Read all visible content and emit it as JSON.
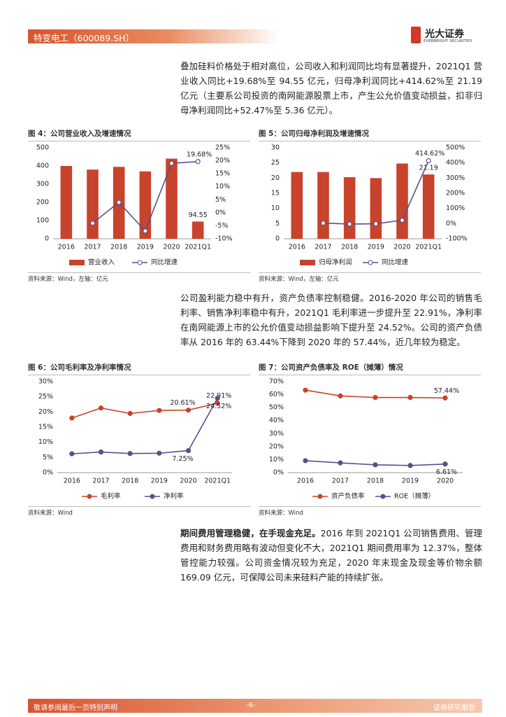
{
  "header": {
    "title": "特变电工（600089.SH）",
    "logo_cn": "光大证券",
    "logo_en": "EVERBRIGHT SECURITIES"
  },
  "paragraphs": [
    "叠加硅料价格处于相对高位，公司收入和利润同比均有显著提升，2021Q1 营业收入同比+19.68%至 94.55 亿元，归母净利润同比+414.62%至 21.19 亿元（主要系公司投资的南网能源股票上市，产生公允价值变动损益，扣非归母净利润同比+52.47%至 5.36 亿元）。",
    "公司盈利能力稳中有升，资产负债率控制稳健。2016-2020 年公司的销售毛利率、销售净利率稳中有升，2021Q1 毛利率进一步提升至 22.91%，净利率在南网能源上市的公允价值变动损益影响下提升至 24.52%。公司的资产负债率从 2016 年的 63.44%下降到 2020 年的 57.44%，近几年较为稳定。",
    {
      "lead": "期间费用管理稳健，在手现金充足。",
      "text": "2016 年到 2021Q1 公司销售费用、管理费用和财务费用略有波动但变化不大，2021Q1 期间费用率为 12.37%，整体管控能力较强。公司资金情况较为充足，2020 年末现金及现金等价物余额 169.09 亿元，可保障公司未来硅料产能的持续扩张。"
    }
  ],
  "chart_data": [
    {
      "type": "combo",
      "title": "图 4：公司营业收入及增速情况",
      "source": "资料来源：Wind，左轴：亿元",
      "categories": [
        "2016",
        "2017",
        "2018",
        "2019",
        "2020",
        "2021Q1"
      ],
      "series": [
        {
          "name": "营业收入",
          "type": "bar",
          "color": "#c8432b",
          "values": [
            400,
            380,
            395,
            370,
            440,
            94.55
          ],
          "value_labels": [
            null,
            null,
            null,
            null,
            null,
            "94.55"
          ]
        },
        {
          "name": "同比增速",
          "type": "line",
          "axis": "y2",
          "color": "#5b4e8a",
          "values": [
            null,
            -4,
            4,
            -7,
            19,
            19.68
          ],
          "value_labels": [
            null,
            null,
            null,
            null,
            null,
            "19.68%"
          ]
        }
      ],
      "ylim": [
        0,
        500
      ],
      "yticks": [
        0,
        100,
        200,
        300,
        400,
        500
      ],
      "y2lim": [
        -10,
        25
      ],
      "y2ticks": [
        {
          "value": -10,
          "label": "-10%"
        },
        {
          "value": -5,
          "label": "-5%"
        },
        {
          "value": 0,
          "label": "0%"
        },
        {
          "value": 5,
          "label": "5%"
        },
        {
          "value": 10,
          "label": "10%"
        },
        {
          "value": 15,
          "label": "15%"
        },
        {
          "value": 20,
          "label": "20%"
        },
        {
          "value": 25,
          "label": "25%"
        }
      ]
    },
    {
      "type": "combo",
      "title": "图 5：公司归母净利润及增速情况",
      "source": "资料来源：Wind，左轴：亿元",
      "categories": [
        "2016",
        "2017",
        "2018",
        "2019",
        "2020",
        "2021Q1"
      ],
      "series": [
        {
          "name": "归母净利润",
          "type": "bar",
          "color": "#c8432b",
          "values": [
            22,
            22,
            20.3,
            20,
            24.8,
            21.19
          ],
          "value_labels": [
            null,
            null,
            null,
            null,
            null,
            "21.19"
          ]
        },
        {
          "name": "同比增速",
          "type": "line",
          "axis": "y2",
          "color": "#5b4e8a",
          "values": [
            null,
            3,
            -3,
            -1,
            22,
            414.62
          ],
          "value_labels": [
            null,
            null,
            null,
            null,
            null,
            "414.62%"
          ]
        }
      ],
      "ylim": [
        0,
        30
      ],
      "yticks": [
        0,
        5,
        10,
        15,
        20,
        25,
        30
      ],
      "y2lim": [
        -100,
        500
      ],
      "y2ticks": [
        {
          "value": -100,
          "label": "-100%"
        },
        {
          "value": 0,
          "label": "0%"
        },
        {
          "value": 100,
          "label": "100%"
        },
        {
          "value": 200,
          "label": "200%"
        },
        {
          "value": 300,
          "label": "300%"
        },
        {
          "value": 400,
          "label": "400%"
        },
        {
          "value": 500,
          "label": "500%"
        }
      ]
    },
    {
      "type": "line",
      "title": "图 6：公司毛利率及净利率情况",
      "source": "资料来源：Wind",
      "categories": [
        "2016",
        "2017",
        "2018",
        "2019",
        "2020",
        "2021Q1"
      ],
      "series": [
        {
          "name": "毛利率",
          "type": "line",
          "color": "#c8432b",
          "values": [
            18,
            21.3,
            19.5,
            20.5,
            20.61,
            22.91
          ],
          "value_labels": [
            null,
            null,
            null,
            null,
            "20.61%",
            "22.91%"
          ]
        },
        {
          "name": "净利率",
          "type": "line",
          "color": "#5b4e8a",
          "values": [
            6.2,
            6.8,
            6.3,
            6.4,
            7.25,
            24.52
          ],
          "value_labels": [
            null,
            null,
            null,
            null,
            "7.25%",
            "24.52%"
          ]
        }
      ],
      "ylim": [
        0,
        30
      ],
      "yticks": [
        {
          "value": 0,
          "label": "0%"
        },
        {
          "value": 5,
          "label": "5%"
        },
        {
          "value": 10,
          "label": "10%"
        },
        {
          "value": 15,
          "label": "15%"
        },
        {
          "value": 20,
          "label": "20%"
        },
        {
          "value": 25,
          "label": "25%"
        },
        {
          "value": 30,
          "label": "30%"
        }
      ]
    },
    {
      "type": "line",
      "title": "图 7：公司资产负债率及 ROE（摊薄）情况",
      "source": "资料来源：Wind",
      "categories": [
        "2016",
        "2017",
        "2018",
        "2019",
        "2020"
      ],
      "series": [
        {
          "name": "资产负债率",
          "type": "line",
          "color": "#c8432b",
          "values": [
            63.44,
            59,
            57.8,
            57.8,
            57.44
          ],
          "value_labels": [
            null,
            null,
            null,
            null,
            "57.44%"
          ]
        },
        {
          "name": "ROE（摊薄）",
          "type": "line",
          "color": "#5b4e8a",
          "values": [
            9.2,
            7.5,
            6.0,
            5.5,
            6.61
          ],
          "value_labels": [
            null,
            null,
            null,
            null,
            "6.61%"
          ]
        }
      ],
      "ylim": [
        0,
        70
      ],
      "yticks": [
        {
          "value": 0,
          "label": "0%"
        },
        {
          "value": 10,
          "label": "10%"
        },
        {
          "value": 20,
          "label": "20%"
        },
        {
          "value": 30,
          "label": "30%"
        },
        {
          "value": 40,
          "label": "40%"
        },
        {
          "value": 50,
          "label": "50%"
        },
        {
          "value": 60,
          "label": "60%"
        },
        {
          "value": 70,
          "label": "70%"
        }
      ]
    }
  ],
  "footer": {
    "left": "敬请参阅最后一页特别声明",
    "center": "-6-",
    "right": "证券研究报告"
  }
}
